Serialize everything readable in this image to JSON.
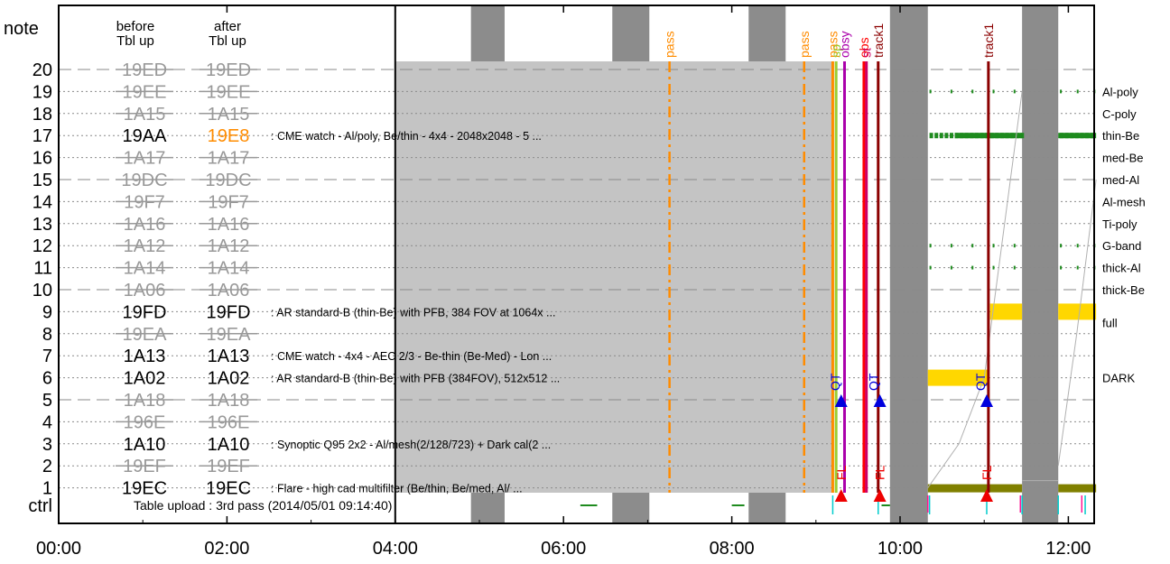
{
  "chart_data": {
    "type": "timeline",
    "header": {
      "note": "note",
      "before": [
        "before",
        "Tbl up"
      ],
      "after": [
        "after",
        "Tbl up"
      ],
      "ctrl": "ctrl"
    },
    "x_ticks": [
      "00:00",
      "02:00",
      "04:00",
      "06:00",
      "08:00",
      "10:00",
      "12:00"
    ],
    "x_range": [
      0,
      12.333
    ],
    "table_upload_label": "Table upload : 3rd pass (2014/05/01 09:14:40)",
    "rows": [
      {
        "n": "20",
        "before": "19ED",
        "after": "19ED",
        "changed": false
      },
      {
        "n": "19",
        "before": "19EE",
        "after": "19EE",
        "changed": false
      },
      {
        "n": "18",
        "before": "1A15",
        "after": "1A15",
        "changed": false
      },
      {
        "n": "17",
        "before": "19AA",
        "after": "19E8",
        "changed": true,
        "after_color": "#ff8c00",
        "desc": ": CME watch - Al/poly, Be/thin - 4x4 - 2048x2048 - 5 ..."
      },
      {
        "n": "16",
        "before": "1A17",
        "after": "1A17",
        "changed": false
      },
      {
        "n": "15",
        "before": "19DC",
        "after": "19DC",
        "changed": false
      },
      {
        "n": "14",
        "before": "19F7",
        "after": "19F7",
        "changed": false
      },
      {
        "n": "13",
        "before": "1A16",
        "after": "1A16",
        "changed": false
      },
      {
        "n": "12",
        "before": "1A12",
        "after": "1A12",
        "changed": false
      },
      {
        "n": "11",
        "before": "1A14",
        "after": "1A14",
        "changed": false
      },
      {
        "n": "10",
        "before": "1A06",
        "after": "1A06",
        "changed": false
      },
      {
        "n": "9",
        "before": "19FD",
        "after": "19FD",
        "changed": true,
        "desc": ": AR standard-B (thin-Be) with PFB, 384 FOV at 1064x ..."
      },
      {
        "n": "8",
        "before": "19EA",
        "after": "19EA",
        "changed": false
      },
      {
        "n": "7",
        "before": "1A13",
        "after": "1A13",
        "changed": true,
        "desc": ": CME watch - 4x4 - AEC 2/3 - Be-thin (Be-Med) - Lon ..."
      },
      {
        "n": "6",
        "before": "1A02",
        "after": "1A02",
        "changed": true,
        "desc": ": AR standard-B (thin-Be) with PFB (384FOV), 512x512 ..."
      },
      {
        "n": "5",
        "before": "1A18",
        "after": "1A18",
        "changed": false
      },
      {
        "n": "4",
        "before": "196E",
        "after": "196E",
        "changed": false
      },
      {
        "n": "3",
        "before": "1A10",
        "after": "1A10",
        "changed": true,
        "desc": ": Synoptic Q95 2x2 - Al/mesh(2/128/723) + Dark cal(2 ..."
      },
      {
        "n": "2",
        "before": "19EF",
        "after": "19EF",
        "changed": false
      },
      {
        "n": "1",
        "before": "19EC",
        "after": "19EC",
        "changed": true,
        "desc": ": Flare - high cad multifilter (Be/thin, Be/med, Al/ ..."
      }
    ],
    "filter_labels": [
      {
        "row": 19,
        "text": "Al-poly"
      },
      {
        "row": 18,
        "text": "C-poly"
      },
      {
        "row": 17,
        "text": "thin-Be"
      },
      {
        "row": 16,
        "text": "med-Be"
      },
      {
        "row": 15,
        "text": "med-Al"
      },
      {
        "row": 14,
        "text": "Al-mesh"
      },
      {
        "row": 13,
        "text": "Ti-poly"
      },
      {
        "row": 12,
        "text": "G-band"
      },
      {
        "row": 11,
        "text": "thick-Al"
      },
      {
        "row": 10,
        "text": "thick-Be"
      },
      {
        "row": 8.5,
        "text": "full"
      },
      {
        "row": 6.0,
        "text": "DARK"
      }
    ],
    "night_bands": [
      [
        4.9,
        5.3
      ],
      [
        6.58,
        7.02
      ],
      [
        8.2,
        8.64
      ],
      [
        9.88,
        10.33
      ],
      [
        11.45,
        11.88
      ]
    ],
    "events": [
      {
        "label": "pass",
        "t": 7.26,
        "color": "#ff8c00",
        "dash": true
      },
      {
        "label": "pass",
        "t": 8.86,
        "color": "#ff8c00",
        "dash": true
      },
      {
        "label": "pass",
        "t": 9.2,
        "color": "#ff8c00",
        "dash": false
      },
      {
        "label": "sp",
        "t": 9.24,
        "color": "#9acd32",
        "dash": false
      },
      {
        "label": "obsy",
        "t": 9.34,
        "color": "#aa00aa",
        "dash": false
      },
      {
        "label": "obs",
        "t": 9.57,
        "color": "#ff0000",
        "dash": false
      },
      {
        "label": "st",
        "t": 9.6,
        "color": "#cc0066",
        "dash": false
      },
      {
        "label": "track1",
        "t": 9.74,
        "color": "#8b0000",
        "dash": false
      },
      {
        "label": "track1",
        "t": 11.05,
        "color": "#8b0000",
        "dash": false
      }
    ],
    "markers_qt": [
      {
        "label": "QT",
        "t": 9.3
      },
      {
        "label": "QT",
        "t": 9.76
      },
      {
        "label": "QT",
        "t": 11.03
      }
    ],
    "markers_fl": [
      {
        "label": "FL",
        "t": 9.3
      },
      {
        "label": "FL",
        "t": 9.76
      },
      {
        "label": "FL",
        "t": 11.03
      }
    ]
  }
}
